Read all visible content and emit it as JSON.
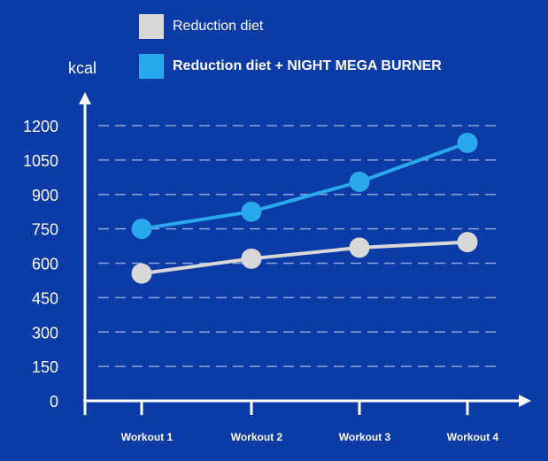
{
  "chart_data": {
    "type": "line",
    "title": "",
    "xlabel": "",
    "ylabel": "kcal",
    "categories": [
      "Workout 1",
      "Workout 2",
      "Workout 3",
      "Workout 4"
    ],
    "yticks": [
      0,
      150,
      300,
      450,
      600,
      750,
      900,
      1050,
      1200
    ],
    "ylim": [
      0,
      1200
    ],
    "grid": true,
    "legend_position": "top",
    "series": [
      {
        "name": "Reduction diet",
        "color": "#d8d8d8",
        "values": [
          555,
          620,
          668,
          692
        ]
      },
      {
        "name": "Reduction diet + NIGHT MEGA BURNER",
        "color": "#29a9ec",
        "values": [
          750,
          825,
          955,
          1125
        ]
      }
    ]
  },
  "colors": {
    "background": "#0b3ba6",
    "axis": "#ffffff",
    "grid": "#8fa3d6",
    "text": "#ffffff"
  }
}
